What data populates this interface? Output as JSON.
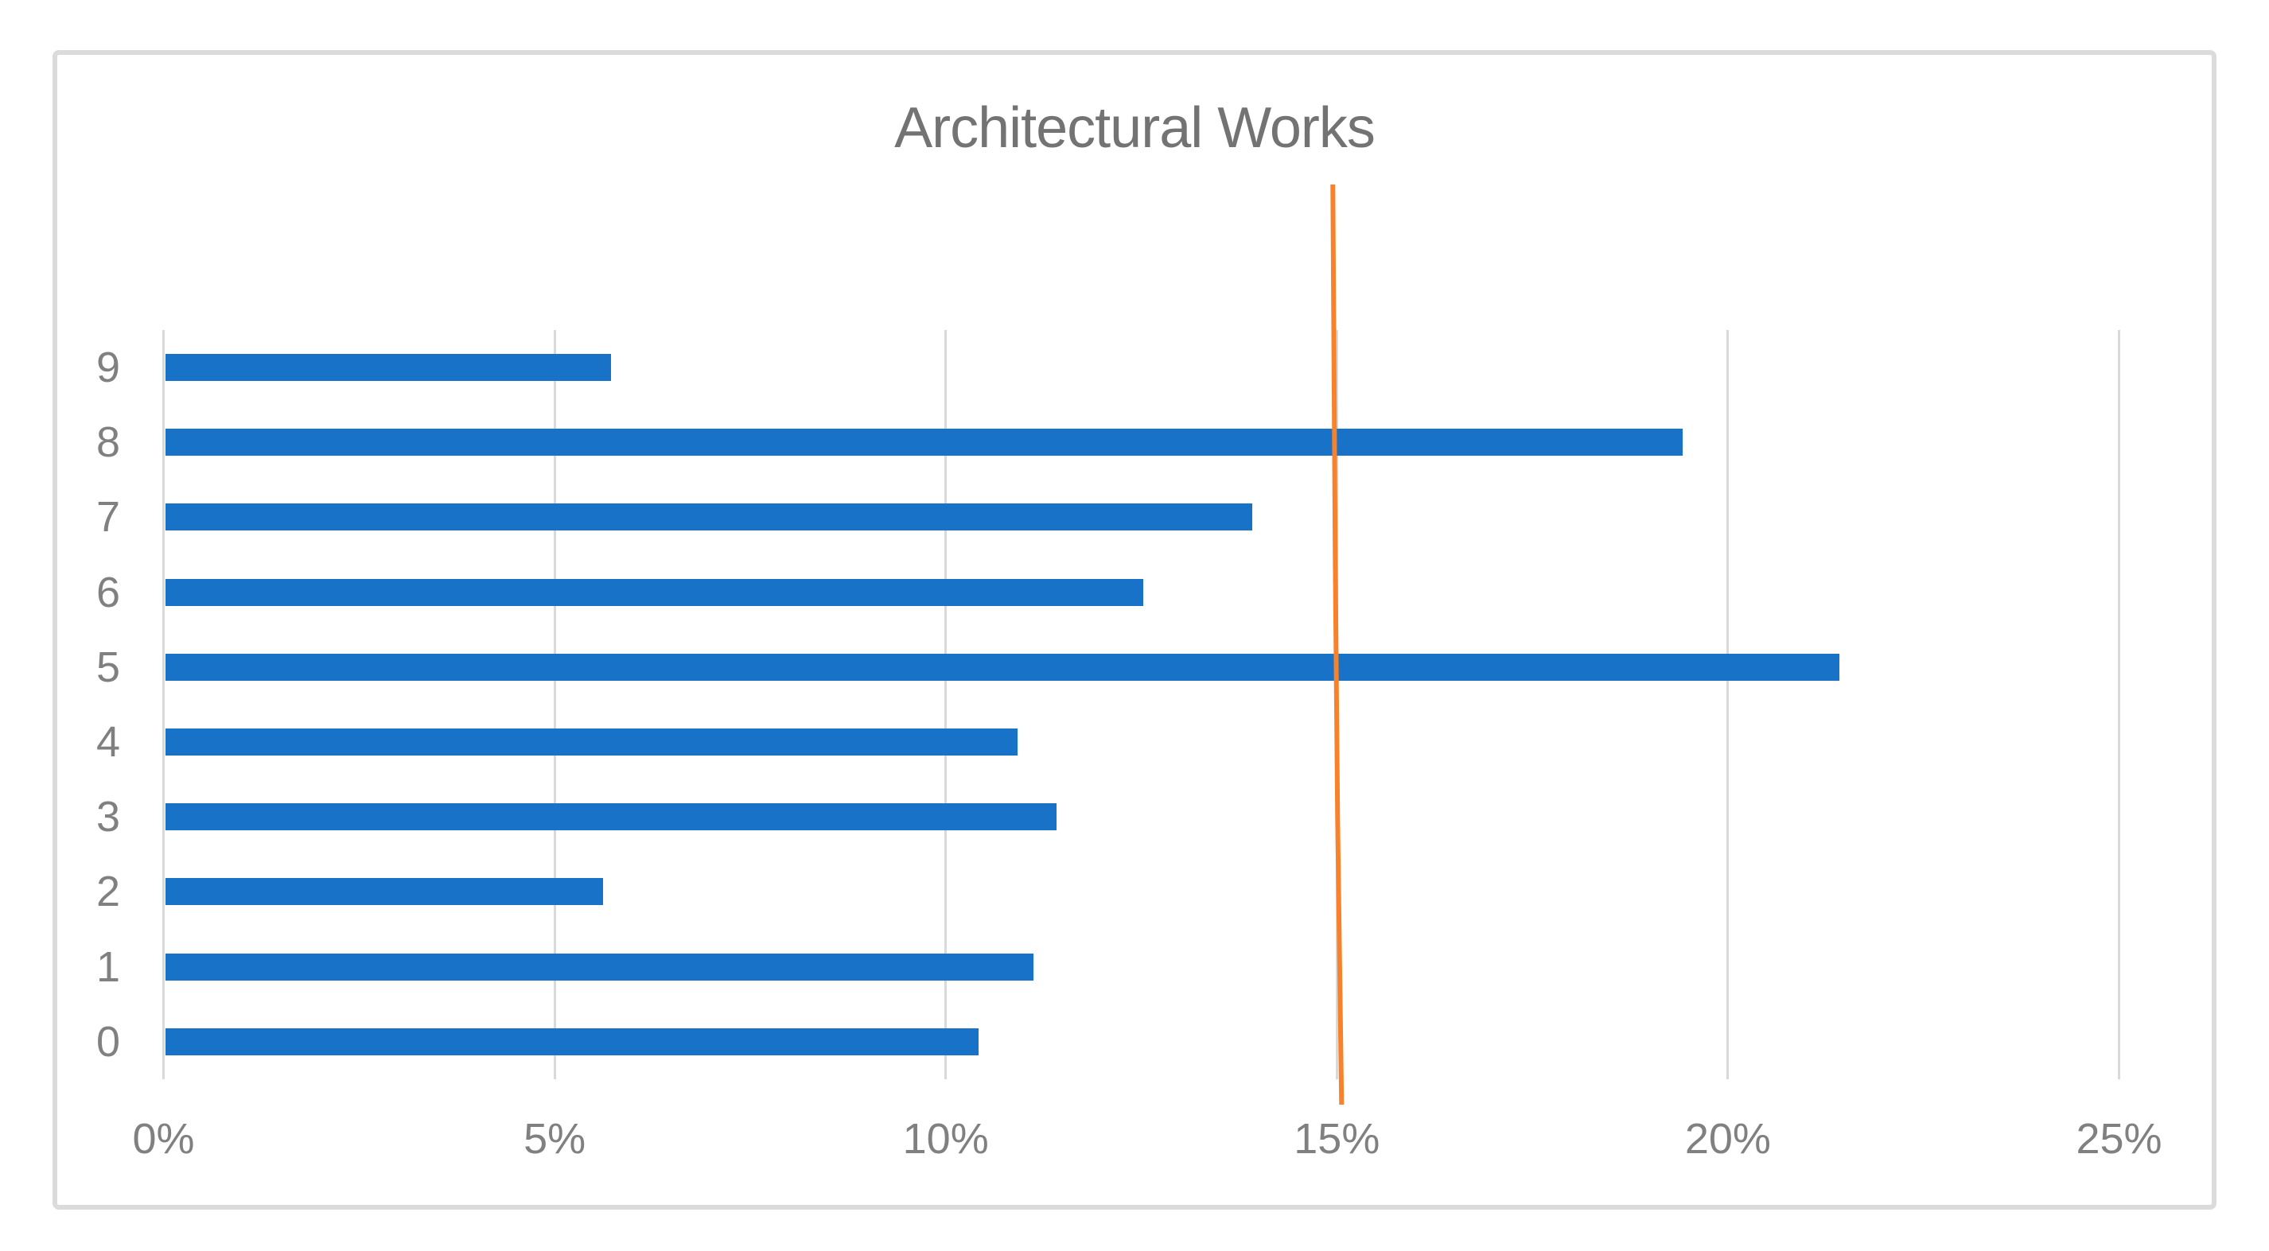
{
  "title": "Architectural Works",
  "chart_data": {
    "type": "bar",
    "orientation": "horizontal",
    "title": "Architectural Works",
    "categories": [
      "9",
      "8",
      "7",
      "6",
      "5",
      "4",
      "3",
      "2",
      "1",
      "0"
    ],
    "values": [
      5.7,
      19.4,
      13.9,
      12.5,
      21.4,
      10.9,
      11.4,
      5.6,
      11.1,
      10.4
    ],
    "unit": "%",
    "x_ticks": [
      "0%",
      "5%",
      "10%",
      "15%",
      "20%",
      "25%"
    ],
    "x_tick_values": [
      0,
      5,
      10,
      15,
      20,
      25
    ],
    "xlim": [
      0,
      25
    ],
    "reference_line": {
      "value": 15,
      "color": "#f8812b"
    },
    "bar_color": "#1772c8",
    "gridline_color": "#d9d9d9",
    "label_color": "#808080",
    "title_color": "#737373",
    "grid": true,
    "legend": false
  }
}
